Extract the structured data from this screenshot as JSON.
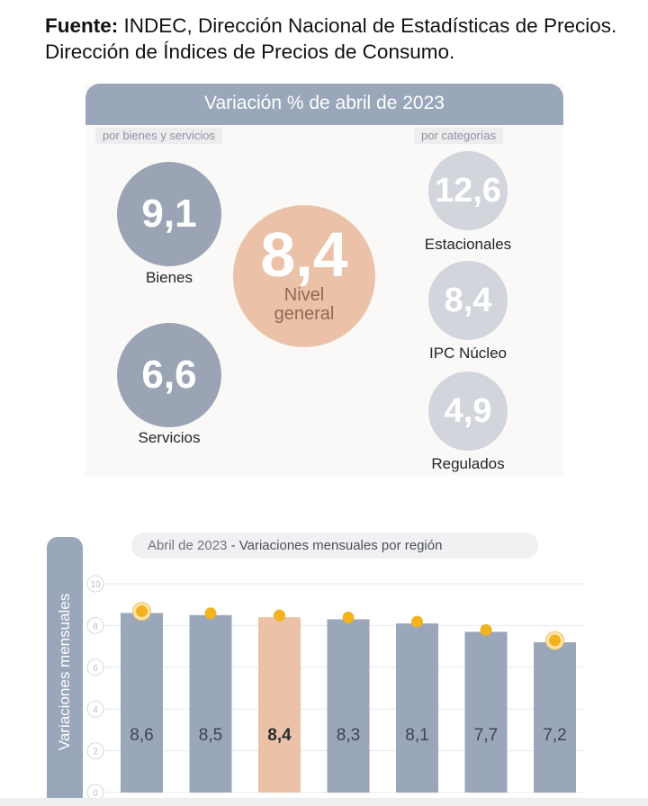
{
  "source": {
    "label": "Fuente:",
    "text": " INDEC, Dirección Nacional de Estadísticas de Precios. Dirección de Índices de Precios de Consumo."
  },
  "infographic": {
    "title": "Variación % de abril de 2023",
    "left_subtitle": "por bienes y servicios",
    "right_subtitle": "por categorías",
    "bienes": {
      "value": "9,1",
      "label": "Bienes"
    },
    "servicios": {
      "value": "6,6",
      "label": "Servicios"
    },
    "general": {
      "value": "8,4",
      "label_line1": "Nivel",
      "label_line2": "general"
    },
    "estacionales": {
      "value": "12,6",
      "label": "Estacionales"
    },
    "nucleo": {
      "value": "8,4",
      "label": "IPC Núcleo"
    },
    "regulados": {
      "value": "4,9",
      "label": "Regulados"
    },
    "colors": {
      "gray": "#9ba4b5",
      "light": "#d2d5dc",
      "peach": "#ebc2a8",
      "header": "#9aa6ba"
    }
  },
  "chart_data": {
    "type": "bar",
    "title_part1": "Abril de 2023",
    "title_sep": " - ",
    "title_part2": "Variaciones mensuales por región",
    "ylabel": "Variaciones mensuales",
    "ylim": [
      0,
      10
    ],
    "yticks": [
      "0",
      "2",
      "4",
      "6",
      "8",
      "10"
    ],
    "values": [
      8.6,
      8.5,
      8.4,
      8.3,
      8.1,
      7.7,
      7.2
    ],
    "value_labels": [
      "8,6",
      "8,5",
      "8,4",
      "8,3",
      "8,1",
      "7,7",
      "7,2"
    ],
    "highlight_index": 2,
    "grid": true,
    "colors": {
      "bar": "#9aa6ba",
      "highlight": "#ebc2a8",
      "marker": "#f2b31e"
    }
  }
}
